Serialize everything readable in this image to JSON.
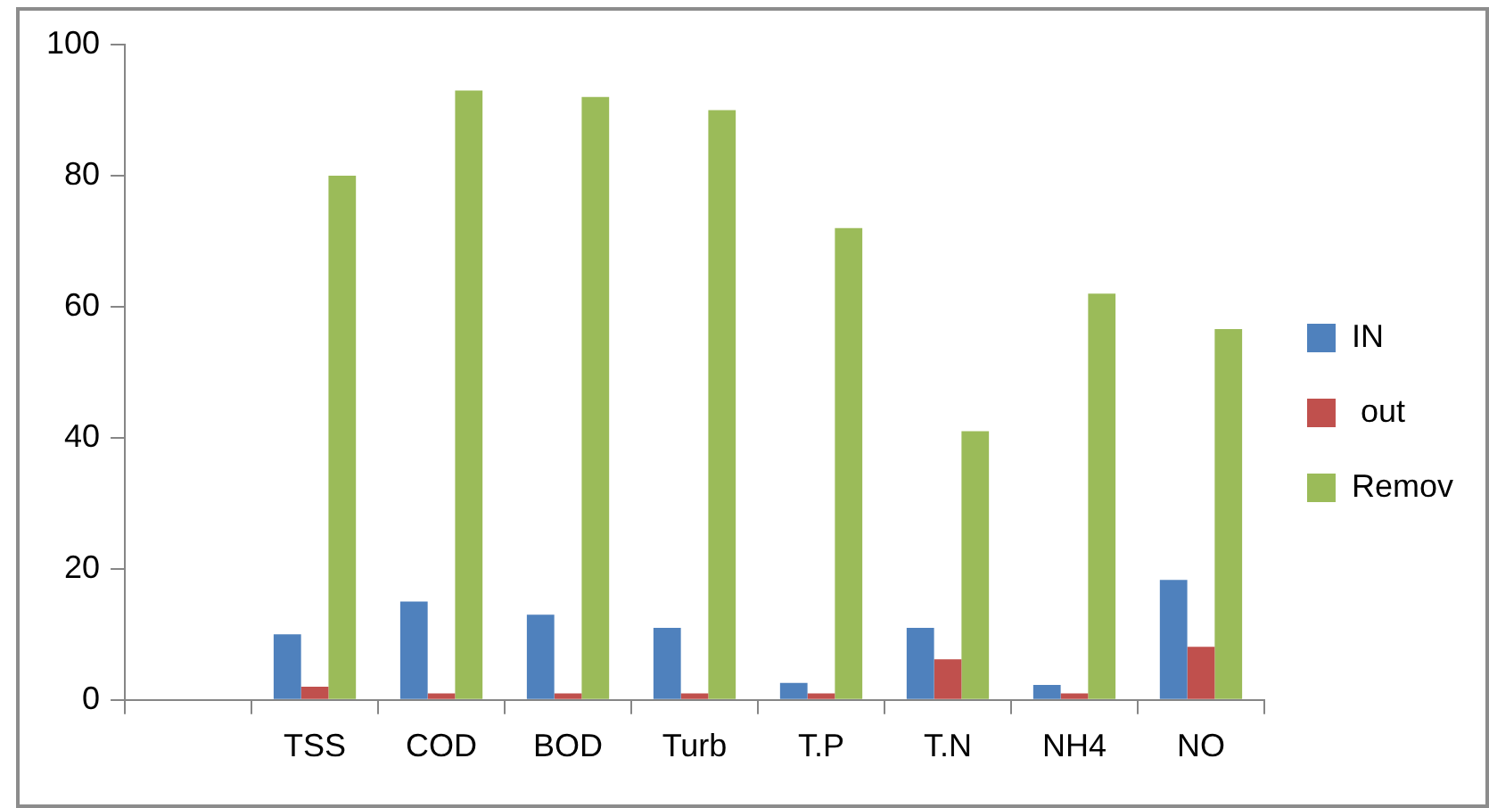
{
  "chart_data": {
    "type": "bar",
    "categories": [
      null,
      "TSS",
      "COD",
      "BOD",
      "Turb",
      "T.P",
      "T.N",
      "NH4",
      "NO"
    ],
    "series": [
      {
        "name": "IN",
        "color": "#4f81bd",
        "values": [
          null,
          10,
          15,
          13,
          11,
          2.6,
          11,
          2.3,
          18.3
        ]
      },
      {
        "name": " out",
        "color": "#c0504d",
        "values": [
          null,
          2,
          1,
          1,
          1,
          1,
          6.2,
          1,
          8.1
        ]
      },
      {
        "name": "Remov",
        "color": "#9bbb59",
        "values": [
          null,
          80,
          93,
          92,
          90,
          72,
          41,
          62,
          56.6
        ]
      }
    ],
    "ylim": [
      0,
      100
    ],
    "yticks": [
      0,
      20,
      40,
      60,
      80,
      100
    ],
    "grid": false,
    "legend": "right"
  }
}
